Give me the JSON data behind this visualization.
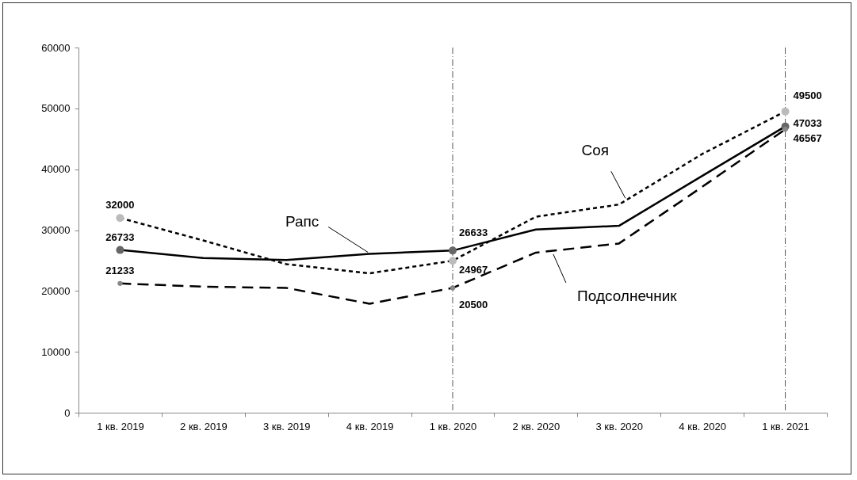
{
  "chart_data": {
    "type": "line",
    "categories": [
      "1 кв. 2019",
      "2 кв. 2019",
      "3 кв. 2019",
      "4 кв. 2019",
      "1 кв. 2020",
      "2 кв. 2020",
      "3 кв. 2020",
      "4 кв. 2020",
      "1 кв. 2021"
    ],
    "ylim": [
      0,
      60000
    ],
    "yticks": [
      0,
      10000,
      20000,
      30000,
      40000,
      50000,
      60000
    ],
    "grid": false,
    "legend": false,
    "series": [
      {
        "name": "Соя",
        "color": "#000000",
        "line_style": "dotted",
        "values": [
          32000,
          28300,
          24400,
          22900,
          24967,
          32200,
          34200,
          42500,
          49500
        ],
        "value_labels": [
          "32000",
          null,
          null,
          null,
          "24967",
          null,
          null,
          null,
          "49500"
        ]
      },
      {
        "name": "Рапс",
        "color": "#000000",
        "line_style": "solid",
        "values": [
          26733,
          25400,
          25100,
          26100,
          26633,
          30100,
          30700,
          38900,
          47033
        ],
        "value_labels": [
          "26733",
          null,
          null,
          null,
          "26633",
          null,
          null,
          null,
          "47033"
        ]
      },
      {
        "name": "Подсолнечник",
        "color": "#000000",
        "line_style": "dashed",
        "values": [
          21233,
          20700,
          20500,
          17900,
          20500,
          26300,
          27800,
          37100,
          46567
        ],
        "value_labels": [
          "21233",
          null,
          null,
          null,
          "20500",
          null,
          null,
          null,
          "46567"
        ]
      },
      {
        "type": "scatter",
        "marker": "circle",
        "color": "#bbbbbb",
        "x": [
          "1 кв. 2019",
          "1 кв. 2020",
          "1 кв. 2021"
        ],
        "values": [
          32000,
          24967,
          49500
        ]
      },
      {
        "type": "scatter",
        "marker": "circle",
        "color": "#666666",
        "x": [
          "1 кв. 2019",
          "1 кв. 2020",
          "1 кв. 2021"
        ],
        "values": [
          26733,
          26633,
          47033
        ]
      },
      {
        "type": "scatter",
        "marker": "circle",
        "color": "#888888",
        "x": [
          "1 кв. 2019",
          "1 кв. 2020",
          "1 кв. 2021"
        ],
        "values": [
          21233,
          20500,
          46567
        ]
      }
    ],
    "ref_lines": [
      {
        "axis": "x",
        "value": "1 кв. 2020",
        "line_style": "dashed",
        "color": "#555555"
      },
      {
        "axis": "x",
        "value": "1 кв. 2021",
        "line_style": "dashed",
        "color": "#555555"
      }
    ]
  }
}
